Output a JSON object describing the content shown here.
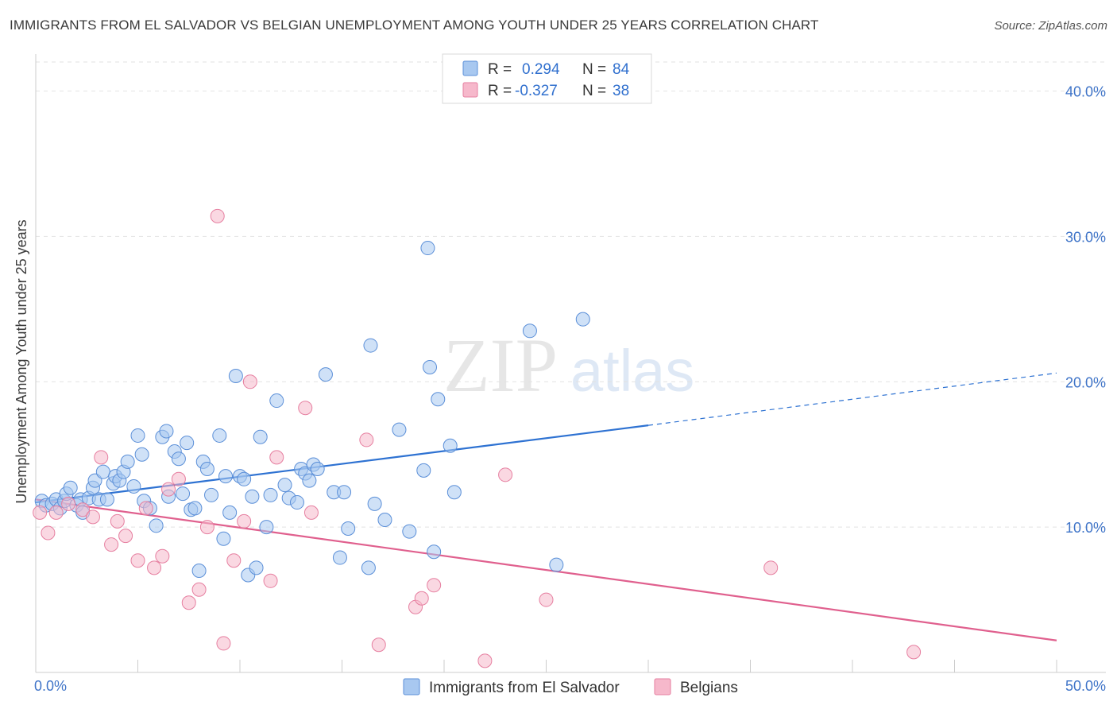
{
  "header": {
    "title": "IMMIGRANTS FROM EL SALVADOR VS BELGIAN UNEMPLOYMENT AMONG YOUTH UNDER 25 YEARS CORRELATION CHART",
    "source": "Source: ZipAtlas.com"
  },
  "watermark": {
    "zip": "ZIP",
    "atlas": "atlas"
  },
  "legend": {
    "rows": [
      {
        "r_label": "R =",
        "r_value": "0.294",
        "n_label": "N =",
        "n_value": "84",
        "color": "#a8c8f0"
      },
      {
        "r_label": "R =",
        "r_value": "-0.327",
        "n_label": "N =",
        "n_value": "38",
        "color": "#f6b8cb"
      }
    ]
  },
  "bottom_legend": {
    "items": [
      {
        "label": "Immigrants from El Salvador",
        "color": "#a8c8f0"
      },
      {
        "label": "Belgians",
        "color": "#f6b8cb"
      }
    ]
  },
  "chart_data": {
    "type": "scatter",
    "title": "IMMIGRANTS FROM EL SALVADOR VS BELGIAN UNEMPLOYMENT AMONG YOUTH UNDER 25 YEARS CORRELATION CHART",
    "xlabel": "",
    "ylabel": "Unemployment Among Youth under 25 years",
    "xlim": [
      0,
      50
    ],
    "ylim": [
      0,
      42
    ],
    "x_tick_labels": [
      "0.0%",
      "50.0%"
    ],
    "y_ticks": [
      10,
      20,
      30,
      40
    ],
    "y_tick_labels": [
      "10.0%",
      "20.0%",
      "30.0%",
      "40.0%"
    ],
    "grid": true,
    "series": [
      {
        "name": "Immigrants from El Salvador",
        "color": "#a8c8f0",
        "stroke": "#5b8fd8",
        "trend": {
          "x0": 0,
          "y0": 11.7,
          "x1": 30,
          "y1": 17.0,
          "dash_to_x": 50,
          "dash_to_y": 20.6,
          "color": "#2e72d2"
        },
        "points": [
          [
            0.3,
            11.8
          ],
          [
            0.5,
            11.5
          ],
          [
            0.8,
            11.6
          ],
          [
            1.0,
            11.9
          ],
          [
            1.2,
            11.3
          ],
          [
            1.4,
            11.8
          ],
          [
            1.5,
            12.3
          ],
          [
            1.7,
            12.7
          ],
          [
            2.0,
            11.5
          ],
          [
            2.2,
            11.9
          ],
          [
            2.3,
            11.0
          ],
          [
            2.6,
            12.0
          ],
          [
            2.8,
            12.7
          ],
          [
            2.9,
            13.2
          ],
          [
            3.1,
            11.9
          ],
          [
            3.3,
            13.8
          ],
          [
            3.5,
            11.9
          ],
          [
            3.8,
            13.0
          ],
          [
            3.9,
            13.5
          ],
          [
            4.1,
            13.2
          ],
          [
            4.3,
            13.8
          ],
          [
            4.5,
            14.5
          ],
          [
            4.8,
            12.8
          ],
          [
            5.0,
            16.3
          ],
          [
            5.2,
            15.0
          ],
          [
            5.3,
            11.8
          ],
          [
            5.6,
            11.3
          ],
          [
            5.9,
            10.1
          ],
          [
            6.2,
            16.2
          ],
          [
            6.4,
            16.6
          ],
          [
            6.5,
            12.1
          ],
          [
            6.8,
            15.2
          ],
          [
            7.0,
            14.7
          ],
          [
            7.2,
            12.3
          ],
          [
            7.4,
            15.8
          ],
          [
            7.6,
            11.2
          ],
          [
            7.8,
            11.3
          ],
          [
            8.0,
            7.0
          ],
          [
            8.2,
            14.5
          ],
          [
            8.4,
            14.0
          ],
          [
            8.6,
            12.2
          ],
          [
            9.0,
            16.3
          ],
          [
            9.2,
            9.2
          ],
          [
            9.3,
            13.5
          ],
          [
            9.5,
            11.0
          ],
          [
            9.8,
            20.4
          ],
          [
            10.0,
            13.5
          ],
          [
            10.2,
            13.3
          ],
          [
            10.4,
            6.7
          ],
          [
            10.6,
            12.1
          ],
          [
            10.8,
            7.2
          ],
          [
            11.0,
            16.2
          ],
          [
            11.3,
            10.0
          ],
          [
            11.5,
            12.2
          ],
          [
            11.8,
            18.7
          ],
          [
            12.2,
            12.9
          ],
          [
            12.4,
            12.0
          ],
          [
            12.8,
            11.7
          ],
          [
            13.0,
            14.0
          ],
          [
            13.2,
            13.7
          ],
          [
            13.4,
            13.2
          ],
          [
            13.6,
            14.3
          ],
          [
            13.8,
            14.0
          ],
          [
            14.2,
            20.5
          ],
          [
            14.6,
            12.4
          ],
          [
            14.9,
            7.9
          ],
          [
            15.1,
            12.4
          ],
          [
            15.3,
            9.9
          ],
          [
            16.3,
            7.2
          ],
          [
            16.4,
            22.5
          ],
          [
            16.6,
            11.6
          ],
          [
            17.1,
            10.5
          ],
          [
            17.8,
            16.7
          ],
          [
            18.3,
            9.7
          ],
          [
            19.0,
            13.9
          ],
          [
            19.3,
            21.0
          ],
          [
            19.5,
            8.3
          ],
          [
            19.7,
            18.8
          ],
          [
            20.3,
            15.6
          ],
          [
            20.5,
            12.4
          ],
          [
            24.2,
            23.5
          ],
          [
            25.5,
            7.4
          ],
          [
            26.8,
            24.3
          ],
          [
            19.2,
            29.2
          ]
        ]
      },
      {
        "name": "Belgians",
        "color": "#f6b8cb",
        "stroke": "#e67fa0",
        "trend": {
          "x0": 0,
          "y0": 11.9,
          "x1": 50,
          "y1": 2.2,
          "color": "#e0608e"
        },
        "points": [
          [
            0.2,
            11.0
          ],
          [
            0.6,
            9.6
          ],
          [
            1.0,
            11.0
          ],
          [
            1.6,
            11.6
          ],
          [
            2.3,
            11.2
          ],
          [
            2.8,
            10.7
          ],
          [
            3.2,
            14.8
          ],
          [
            3.7,
            8.8
          ],
          [
            4.0,
            10.4
          ],
          [
            4.4,
            9.4
          ],
          [
            5.0,
            7.7
          ],
          [
            5.4,
            11.3
          ],
          [
            5.8,
            7.2
          ],
          [
            6.2,
            8.0
          ],
          [
            6.5,
            12.6
          ],
          [
            7.0,
            13.3
          ],
          [
            7.5,
            4.8
          ],
          [
            8.0,
            5.7
          ],
          [
            8.4,
            10.0
          ],
          [
            9.2,
            2.0
          ],
          [
            9.7,
            7.7
          ],
          [
            10.2,
            10.4
          ],
          [
            10.5,
            20.0
          ],
          [
            11.5,
            6.3
          ],
          [
            11.8,
            14.8
          ],
          [
            13.2,
            18.2
          ],
          [
            13.5,
            11.0
          ],
          [
            16.2,
            16.0
          ],
          [
            16.8,
            1.9
          ],
          [
            18.6,
            4.5
          ],
          [
            18.9,
            5.1
          ],
          [
            19.5,
            6.0
          ],
          [
            22.0,
            0.8
          ],
          [
            23.0,
            13.6
          ],
          [
            25.0,
            5.0
          ],
          [
            36.0,
            7.2
          ],
          [
            43.0,
            1.4
          ],
          [
            8.9,
            31.4
          ]
        ]
      }
    ]
  }
}
